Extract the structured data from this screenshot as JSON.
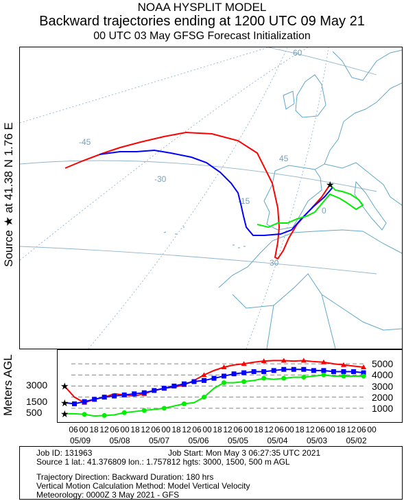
{
  "header": {
    "line1": "NOAA HYSPLIT MODEL",
    "line2": "Backward trajectories ending at 1200 UTC 09 May 21",
    "line3": "00 UTC 03 May    GFSG  Forecast Initialization"
  },
  "map": {
    "side_label": "Source ★ at   41.38 N   1.76 E",
    "lat_labels": [
      "60",
      "45",
      "30"
    ],
    "lon_labels": [
      "-45",
      "-30",
      "-15",
      "0"
    ]
  },
  "vertical": {
    "ylabel": "Meters AGL",
    "left_ticks": [
      "3000",
      "1500",
      "500"
    ],
    "right_ticks": [
      "5000",
      "4000",
      "3000",
      "2000",
      "1000"
    ],
    "hour_ticks": [
      "06",
      "00",
      "18",
      "12",
      "06",
      "00",
      "18",
      "12",
      "06",
      "00",
      "18",
      "12",
      "06",
      "00",
      "18",
      "12",
      "06",
      "00",
      "18",
      "12",
      "06",
      "00",
      "18",
      "12",
      "06",
      "00",
      "18",
      "12",
      "06",
      "00"
    ],
    "date_ticks": [
      "05/09",
      "05/08",
      "05/07",
      "05/06",
      "05/05",
      "05/04",
      "05/03",
      "05/02"
    ]
  },
  "footer": {
    "job_id": "Job ID: 131963",
    "job_start": "Job Start: Mon May  3 06:27:35 UTC 2021",
    "source": "Source 1 lat.: 41.376809  lon.: 1.757812  hgts: 3000, 1500, 500 m AGL",
    "direction": "Trajectory Direction: Backward      Duration: 180 hrs",
    "vertical_method": "Vertical Motion Calculation Method:       Model Vertical Velocity",
    "meteorology": "Meteorology: 0000Z  3 May 2021 - GFS"
  },
  "colors": {
    "red": "#ff0000",
    "blue": "#0000ff",
    "green": "#00ee00",
    "land": "#5ea8c8",
    "grid": "#8fb4cc"
  },
  "chart_data": {
    "type": "line",
    "x_unit": "hours before 1200 UTC 09 May 2021",
    "x": [
      0,
      6,
      12,
      18,
      24,
      30,
      36,
      42,
      48,
      54,
      60,
      66,
      72,
      78,
      84,
      90,
      96,
      102,
      108,
      114,
      120,
      126,
      132,
      138,
      144,
      150,
      156,
      162,
      168,
      174,
      180
    ],
    "ylabel": "Meters AGL",
    "ylim": [
      0,
      6000
    ],
    "series": [
      {
        "name": "3000",
        "values": [
          3000,
          2000,
          1500,
          1800,
          2000,
          2300,
          2200,
          2100,
          2300,
          2600,
          2800,
          2900,
          3100,
          3500,
          4000,
          4400,
          4700,
          4900,
          5000,
          5150,
          5250,
          5300,
          5300,
          5250,
          5300,
          5200,
          5150,
          5000,
          4900,
          4800,
          4700
        ]
      },
      {
        "name": "1500",
        "values": [
          1500,
          1400,
          1600,
          1800,
          2000,
          2100,
          2200,
          2300,
          2400,
          2600,
          2800,
          3000,
          3200,
          3400,
          3500,
          3700,
          3900,
          4100,
          4200,
          4300,
          4300,
          4400,
          4500,
          4500,
          4500,
          4400,
          4400,
          4300,
          4300,
          4300,
          4200
        ]
      },
      {
        "name": "500",
        "values": [
          500,
          500,
          450,
          300,
          350,
          400,
          600,
          700,
          800,
          900,
          1000,
          1200,
          1400,
          1500,
          2000,
          2800,
          3300,
          3300,
          3400,
          3500,
          3700,
          3600,
          3700,
          3800,
          3800,
          3900,
          4000,
          3900,
          3900,
          3900,
          3900
        ]
      }
    ]
  }
}
